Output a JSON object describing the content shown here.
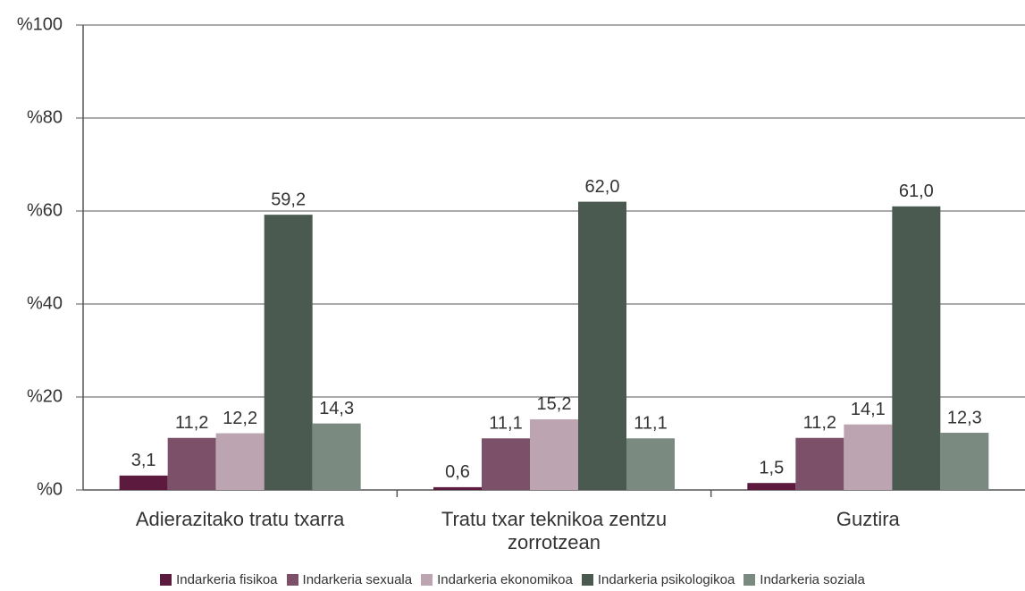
{
  "chart_data": {
    "type": "bar",
    "categories": [
      "Adierazitako tratu txarra",
      "Tratu txar teknikoa zentzu zorrotzean",
      "Guztira"
    ],
    "series": [
      {
        "name": "Indarkeria fisikoa",
        "color": "#5c1a3f",
        "values": [
          3.1,
          0.6,
          1.5
        ],
        "value_labels": [
          "3,1",
          "0,6",
          "1,5"
        ]
      },
      {
        "name": "Indarkeria sexuala",
        "color": "#7d506a",
        "values": [
          11.2,
          11.1,
          11.2
        ],
        "value_labels": [
          "11,2",
          "11,1",
          "11,2"
        ]
      },
      {
        "name": "Indarkeria ekonomikoa",
        "color": "#bca4b0",
        "values": [
          12.2,
          15.2,
          14.1
        ],
        "value_labels": [
          "12,2",
          "15,2",
          "14,1"
        ]
      },
      {
        "name": "Indarkeria psikologikoa",
        "color": "#4a5a50",
        "values": [
          59.2,
          62.0,
          61.0
        ],
        "value_labels": [
          "59,2",
          "62,0",
          "61,0"
        ]
      },
      {
        "name": "Indarkeria soziala",
        "color": "#7a8a80",
        "values": [
          14.3,
          11.1,
          12.3
        ],
        "value_labels": [
          "14,3",
          "11,1",
          "12,3"
        ]
      }
    ],
    "ylim": [
      0,
      100
    ],
    "yticks": [
      {
        "value": 0,
        "label": "%0"
      },
      {
        "value": 20,
        "label": "%20"
      },
      {
        "value": 40,
        "label": "%40"
      },
      {
        "value": 60,
        "label": "%60"
      },
      {
        "value": 80,
        "label": "%80"
      },
      {
        "value": 100,
        "label": "%100"
      }
    ],
    "grid": true,
    "legend": "bottom"
  }
}
